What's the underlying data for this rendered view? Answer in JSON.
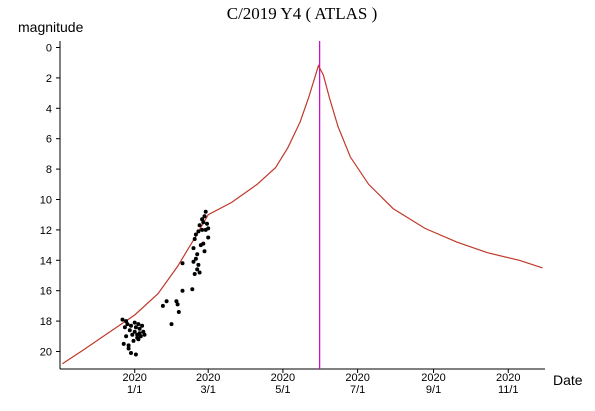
{
  "chart_data": {
    "type": "scatter",
    "title": "C/2019 Y4 ( ATLAS )",
    "ylabel": "magnitude",
    "xlabel": "Date",
    "y_inverted": true,
    "ylim": [
      21,
      -1
    ],
    "y_ticks": [
      0,
      2,
      4,
      6,
      8,
      10,
      12,
      14,
      16,
      18,
      20
    ],
    "x_range": [
      "2019-11-01",
      "2020-12-01"
    ],
    "x_ticks": [
      {
        "date": "2020-01-01",
        "year": "2020",
        "md": "1/1"
      },
      {
        "date": "2020-03-01",
        "year": "2020",
        "md": "3/1"
      },
      {
        "date": "2020-05-01",
        "year": "2020",
        "md": "5/1"
      },
      {
        "date": "2020-07-01",
        "year": "2020",
        "md": "7/1"
      },
      {
        "date": "2020-09-01",
        "year": "2020",
        "md": "9/1"
      },
      {
        "date": "2020-11-01",
        "year": "2020",
        "md": "11/1"
      }
    ],
    "grid": false,
    "marker_line": {
      "date": "2020-05-31",
      "color": "#cc00cc"
    },
    "series": [
      {
        "kind": "line",
        "color": "#c0392b",
        "points": [
          [
            "2019-11-03",
            20.8
          ],
          [
            "2019-11-20",
            19.9
          ],
          [
            "2019-12-10",
            18.8
          ],
          [
            "2020-01-01",
            17.6
          ],
          [
            "2020-01-20",
            16.2
          ],
          [
            "2020-02-05",
            14.4
          ],
          [
            "2020-02-20",
            12.4
          ],
          [
            "2020-03-01",
            11.0
          ],
          [
            "2020-03-20",
            10.2
          ],
          [
            "2020-04-10",
            9.0
          ],
          [
            "2020-04-25",
            7.9
          ],
          [
            "2020-05-05",
            6.6
          ],
          [
            "2020-05-15",
            4.9
          ],
          [
            "2020-05-22",
            3.3
          ],
          [
            "2020-05-27",
            2.0
          ],
          [
            "2020-05-30",
            1.2
          ],
          [
            "2020-06-03",
            1.8
          ],
          [
            "2020-06-08",
            3.3
          ],
          [
            "2020-06-15",
            5.2
          ],
          [
            "2020-06-25",
            7.2
          ],
          [
            "2020-07-10",
            9.0
          ],
          [
            "2020-07-30",
            10.6
          ],
          [
            "2020-08-25",
            11.9
          ],
          [
            "2020-09-20",
            12.8
          ],
          [
            "2020-10-15",
            13.5
          ],
          [
            "2020-11-10",
            14.0
          ],
          [
            "2020-11-29",
            14.5
          ]
        ]
      },
      {
        "kind": "scatter",
        "color": "#000000",
        "points": [
          [
            "2019-12-22",
            17.9
          ],
          [
            "2019-12-24",
            18.4
          ],
          [
            "2019-12-25",
            19.0
          ],
          [
            "2019-12-23",
            19.5
          ],
          [
            "2019-12-26",
            18.2
          ],
          [
            "2019-12-27",
            19.8
          ],
          [
            "2019-12-28",
            18.6
          ],
          [
            "2019-12-29",
            20.1
          ],
          [
            "2019-12-30",
            18.9
          ],
          [
            "2019-12-31",
            19.3
          ],
          [
            "2020-01-01",
            18.1
          ],
          [
            "2020-01-01",
            18.7
          ],
          [
            "2020-01-02",
            20.2
          ],
          [
            "2020-01-02",
            18.4
          ],
          [
            "2020-01-03",
            19.1
          ],
          [
            "2020-01-03",
            18.9
          ],
          [
            "2020-01-04",
            19.2
          ],
          [
            "2020-01-05",
            18.5
          ],
          [
            "2020-01-05",
            18.8
          ],
          [
            "2020-01-06",
            19.0
          ],
          [
            "2020-01-07",
            18.3
          ],
          [
            "2020-01-08",
            18.7
          ],
          [
            "2020-01-09",
            18.9
          ],
          [
            "2019-12-25",
            18.0
          ],
          [
            "2019-12-29",
            18.3
          ],
          [
            "2020-01-04",
            18.2
          ],
          [
            "2019-12-27",
            19.6
          ],
          [
            "2020-01-24",
            17.0
          ],
          [
            "2020-01-27",
            16.7
          ],
          [
            "2020-01-31",
            18.2
          ],
          [
            "2020-02-04",
            16.7
          ],
          [
            "2020-02-05",
            16.9
          ],
          [
            "2020-02-06",
            17.4
          ],
          [
            "2020-02-09",
            16.0
          ],
          [
            "2020-02-09",
            14.2
          ],
          [
            "2020-02-17",
            15.9
          ],
          [
            "2020-02-18",
            14.1
          ],
          [
            "2020-02-18",
            13.2
          ],
          [
            "2020-02-19",
            12.6
          ],
          [
            "2020-02-19",
            14.9
          ],
          [
            "2020-02-20",
            13.9
          ],
          [
            "2020-02-20",
            12.3
          ],
          [
            "2020-02-21",
            14.6
          ],
          [
            "2020-02-21",
            13.6
          ],
          [
            "2020-02-22",
            12.1
          ],
          [
            "2020-02-22",
            14.3
          ],
          [
            "2020-02-23",
            11.7
          ],
          [
            "2020-02-23",
            14.8
          ],
          [
            "2020-02-24",
            13.0
          ],
          [
            "2020-02-25",
            12.0
          ],
          [
            "2020-02-25",
            11.3
          ],
          [
            "2020-02-26",
            12.9
          ],
          [
            "2020-02-27",
            11.1
          ],
          [
            "2020-02-27",
            13.4
          ],
          [
            "2020-02-28",
            12.0
          ],
          [
            "2020-02-28",
            10.8
          ],
          [
            "2020-02-29",
            11.6
          ],
          [
            "2020-03-01",
            12.5
          ],
          [
            "2020-03-01",
            11.9
          ],
          [
            "2020-02-26",
            11.5
          ]
        ]
      }
    ]
  }
}
